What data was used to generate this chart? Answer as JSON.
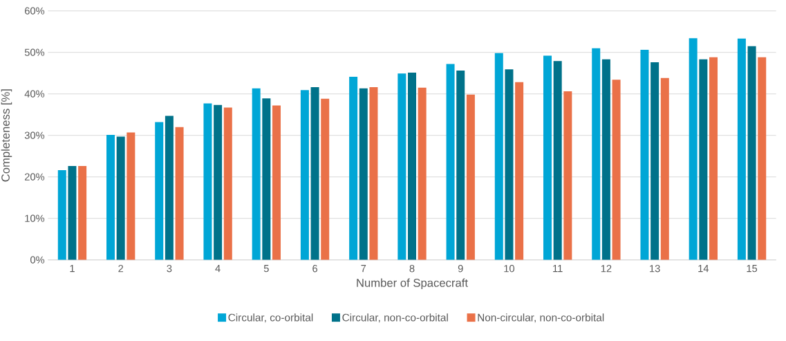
{
  "chart_data": {
    "type": "bar",
    "xlabel": "Number of Spacecraft",
    "ylabel": "Completeness [%]",
    "categories": [
      "1",
      "2",
      "3",
      "4",
      "5",
      "6",
      "7",
      "8",
      "9",
      "10",
      "11",
      "12",
      "13",
      "14",
      "15"
    ],
    "series": [
      {
        "name": "Circular, co-orbital",
        "color": "#00a6d6",
        "values": [
          21.6,
          30.1,
          33.2,
          37.7,
          41.3,
          40.9,
          44.1,
          44.9,
          47.2,
          49.8,
          49.2,
          51.0,
          50.6,
          53.4,
          53.3
        ]
      },
      {
        "name": "Circular, non-co-orbital",
        "color": "#00728a",
        "values": [
          22.6,
          29.7,
          34.7,
          37.3,
          38.9,
          41.6,
          41.3,
          45.1,
          45.6,
          45.9,
          47.9,
          48.3,
          47.6,
          48.3,
          51.5
        ]
      },
      {
        "name": "Non-circular, non-co-orbital",
        "color": "#ea7148",
        "values": [
          22.6,
          30.7,
          32.0,
          36.7,
          37.2,
          38.8,
          41.6,
          41.5,
          39.8,
          42.8,
          40.6,
          43.4,
          43.8,
          48.8,
          48.8
        ]
      }
    ],
    "ylim": [
      0,
      60
    ],
    "yticks": [
      {
        "value": 0,
        "label": "0%"
      },
      {
        "value": 10,
        "label": "10%"
      },
      {
        "value": 20,
        "label": "20%"
      },
      {
        "value": 30,
        "label": "30%"
      },
      {
        "value": 40,
        "label": "40%"
      },
      {
        "value": 50,
        "label": "50%"
      },
      {
        "value": 60,
        "label": "60%"
      }
    ],
    "grid": "y",
    "legend": "bottom"
  }
}
